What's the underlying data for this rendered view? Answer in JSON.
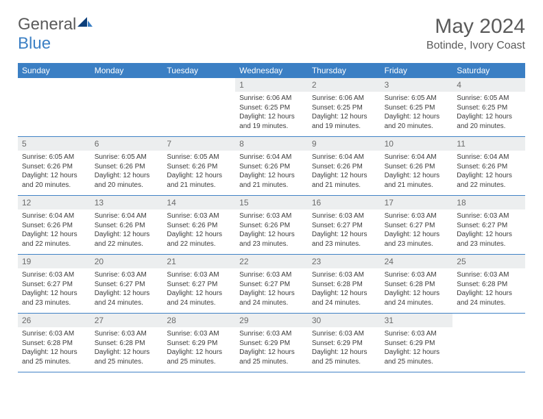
{
  "logo": {
    "text1": "General",
    "text2": "Blue"
  },
  "title": "May 2024",
  "location": "Botinde, Ivory Coast",
  "colors": {
    "header_bar": "#3b7fc4",
    "daynum_bg": "#eceeef",
    "text": "#3a3a3a",
    "muted": "#5a5a5a",
    "white": "#ffffff",
    "week_border": "#3b7fc4"
  },
  "weekdays": [
    "Sunday",
    "Monday",
    "Tuesday",
    "Wednesday",
    "Thursday",
    "Friday",
    "Saturday"
  ],
  "weeks": [
    [
      {
        "n": "",
        "sr": "",
        "ss": "",
        "dl1": "",
        "dl2": ""
      },
      {
        "n": "",
        "sr": "",
        "ss": "",
        "dl1": "",
        "dl2": ""
      },
      {
        "n": "",
        "sr": "",
        "ss": "",
        "dl1": "",
        "dl2": ""
      },
      {
        "n": "1",
        "sr": "Sunrise: 6:06 AM",
        "ss": "Sunset: 6:25 PM",
        "dl1": "Daylight: 12 hours",
        "dl2": "and 19 minutes."
      },
      {
        "n": "2",
        "sr": "Sunrise: 6:06 AM",
        "ss": "Sunset: 6:25 PM",
        "dl1": "Daylight: 12 hours",
        "dl2": "and 19 minutes."
      },
      {
        "n": "3",
        "sr": "Sunrise: 6:05 AM",
        "ss": "Sunset: 6:25 PM",
        "dl1": "Daylight: 12 hours",
        "dl2": "and 20 minutes."
      },
      {
        "n": "4",
        "sr": "Sunrise: 6:05 AM",
        "ss": "Sunset: 6:25 PM",
        "dl1": "Daylight: 12 hours",
        "dl2": "and 20 minutes."
      }
    ],
    [
      {
        "n": "5",
        "sr": "Sunrise: 6:05 AM",
        "ss": "Sunset: 6:26 PM",
        "dl1": "Daylight: 12 hours",
        "dl2": "and 20 minutes."
      },
      {
        "n": "6",
        "sr": "Sunrise: 6:05 AM",
        "ss": "Sunset: 6:26 PM",
        "dl1": "Daylight: 12 hours",
        "dl2": "and 20 minutes."
      },
      {
        "n": "7",
        "sr": "Sunrise: 6:05 AM",
        "ss": "Sunset: 6:26 PM",
        "dl1": "Daylight: 12 hours",
        "dl2": "and 21 minutes."
      },
      {
        "n": "8",
        "sr": "Sunrise: 6:04 AM",
        "ss": "Sunset: 6:26 PM",
        "dl1": "Daylight: 12 hours",
        "dl2": "and 21 minutes."
      },
      {
        "n": "9",
        "sr": "Sunrise: 6:04 AM",
        "ss": "Sunset: 6:26 PM",
        "dl1": "Daylight: 12 hours",
        "dl2": "and 21 minutes."
      },
      {
        "n": "10",
        "sr": "Sunrise: 6:04 AM",
        "ss": "Sunset: 6:26 PM",
        "dl1": "Daylight: 12 hours",
        "dl2": "and 21 minutes."
      },
      {
        "n": "11",
        "sr": "Sunrise: 6:04 AM",
        "ss": "Sunset: 6:26 PM",
        "dl1": "Daylight: 12 hours",
        "dl2": "and 22 minutes."
      }
    ],
    [
      {
        "n": "12",
        "sr": "Sunrise: 6:04 AM",
        "ss": "Sunset: 6:26 PM",
        "dl1": "Daylight: 12 hours",
        "dl2": "and 22 minutes."
      },
      {
        "n": "13",
        "sr": "Sunrise: 6:04 AM",
        "ss": "Sunset: 6:26 PM",
        "dl1": "Daylight: 12 hours",
        "dl2": "and 22 minutes."
      },
      {
        "n": "14",
        "sr": "Sunrise: 6:03 AM",
        "ss": "Sunset: 6:26 PM",
        "dl1": "Daylight: 12 hours",
        "dl2": "and 22 minutes."
      },
      {
        "n": "15",
        "sr": "Sunrise: 6:03 AM",
        "ss": "Sunset: 6:26 PM",
        "dl1": "Daylight: 12 hours",
        "dl2": "and 23 minutes."
      },
      {
        "n": "16",
        "sr": "Sunrise: 6:03 AM",
        "ss": "Sunset: 6:27 PM",
        "dl1": "Daylight: 12 hours",
        "dl2": "and 23 minutes."
      },
      {
        "n": "17",
        "sr": "Sunrise: 6:03 AM",
        "ss": "Sunset: 6:27 PM",
        "dl1": "Daylight: 12 hours",
        "dl2": "and 23 minutes."
      },
      {
        "n": "18",
        "sr": "Sunrise: 6:03 AM",
        "ss": "Sunset: 6:27 PM",
        "dl1": "Daylight: 12 hours",
        "dl2": "and 23 minutes."
      }
    ],
    [
      {
        "n": "19",
        "sr": "Sunrise: 6:03 AM",
        "ss": "Sunset: 6:27 PM",
        "dl1": "Daylight: 12 hours",
        "dl2": "and 23 minutes."
      },
      {
        "n": "20",
        "sr": "Sunrise: 6:03 AM",
        "ss": "Sunset: 6:27 PM",
        "dl1": "Daylight: 12 hours",
        "dl2": "and 24 minutes."
      },
      {
        "n": "21",
        "sr": "Sunrise: 6:03 AM",
        "ss": "Sunset: 6:27 PM",
        "dl1": "Daylight: 12 hours",
        "dl2": "and 24 minutes."
      },
      {
        "n": "22",
        "sr": "Sunrise: 6:03 AM",
        "ss": "Sunset: 6:27 PM",
        "dl1": "Daylight: 12 hours",
        "dl2": "and 24 minutes."
      },
      {
        "n": "23",
        "sr": "Sunrise: 6:03 AM",
        "ss": "Sunset: 6:28 PM",
        "dl1": "Daylight: 12 hours",
        "dl2": "and 24 minutes."
      },
      {
        "n": "24",
        "sr": "Sunrise: 6:03 AM",
        "ss": "Sunset: 6:28 PM",
        "dl1": "Daylight: 12 hours",
        "dl2": "and 24 minutes."
      },
      {
        "n": "25",
        "sr": "Sunrise: 6:03 AM",
        "ss": "Sunset: 6:28 PM",
        "dl1": "Daylight: 12 hours",
        "dl2": "and 24 minutes."
      }
    ],
    [
      {
        "n": "26",
        "sr": "Sunrise: 6:03 AM",
        "ss": "Sunset: 6:28 PM",
        "dl1": "Daylight: 12 hours",
        "dl2": "and 25 minutes."
      },
      {
        "n": "27",
        "sr": "Sunrise: 6:03 AM",
        "ss": "Sunset: 6:28 PM",
        "dl1": "Daylight: 12 hours",
        "dl2": "and 25 minutes."
      },
      {
        "n": "28",
        "sr": "Sunrise: 6:03 AM",
        "ss": "Sunset: 6:29 PM",
        "dl1": "Daylight: 12 hours",
        "dl2": "and 25 minutes."
      },
      {
        "n": "29",
        "sr": "Sunrise: 6:03 AM",
        "ss": "Sunset: 6:29 PM",
        "dl1": "Daylight: 12 hours",
        "dl2": "and 25 minutes."
      },
      {
        "n": "30",
        "sr": "Sunrise: 6:03 AM",
        "ss": "Sunset: 6:29 PM",
        "dl1": "Daylight: 12 hours",
        "dl2": "and 25 minutes."
      },
      {
        "n": "31",
        "sr": "Sunrise: 6:03 AM",
        "ss": "Sunset: 6:29 PM",
        "dl1": "Daylight: 12 hours",
        "dl2": "and 25 minutes."
      },
      {
        "n": "",
        "sr": "",
        "ss": "",
        "dl1": "",
        "dl2": ""
      }
    ]
  ]
}
